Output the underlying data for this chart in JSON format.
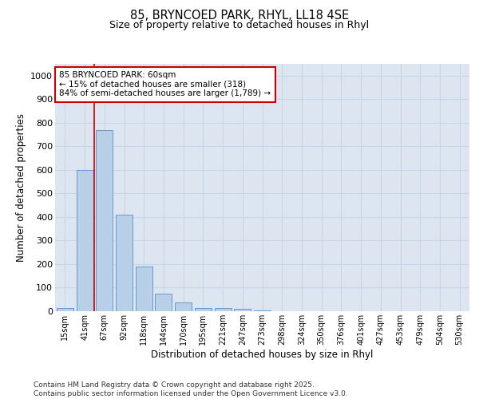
{
  "title_line1": "85, BRYNCOED PARK, RHYL, LL18 4SE",
  "title_line2": "Size of property relative to detached houses in Rhyl",
  "xlabel": "Distribution of detached houses by size in Rhyl",
  "ylabel": "Number of detached properties",
  "bar_labels": [
    "15sqm",
    "41sqm",
    "67sqm",
    "92sqm",
    "118sqm",
    "144sqm",
    "170sqm",
    "195sqm",
    "221sqm",
    "247sqm",
    "273sqm",
    "298sqm",
    "324sqm",
    "350sqm",
    "376sqm",
    "401sqm",
    "427sqm",
    "453sqm",
    "479sqm",
    "504sqm",
    "530sqm"
  ],
  "bar_values": [
    13,
    600,
    769,
    410,
    190,
    75,
    38,
    15,
    13,
    10,
    5,
    0,
    0,
    0,
    0,
    0,
    0,
    0,
    0,
    0,
    0
  ],
  "bar_color": "#b8cfe8",
  "bar_edge_color": "#6699cc",
  "vline_x": 1.5,
  "vline_color": "#cc0000",
  "annotation_text": "85 BRYNCOED PARK: 60sqm\n← 15% of detached houses are smaller (318)\n84% of semi-detached houses are larger (1,789) →",
  "annotation_box_color": "#cc0000",
  "ylim": [
    0,
    1050
  ],
  "yticks": [
    0,
    100,
    200,
    300,
    400,
    500,
    600,
    700,
    800,
    900,
    1000
  ],
  "grid_color": "#c8d4e8",
  "bg_color": "#dde6f0",
  "footer_line1": "Contains HM Land Registry data © Crown copyright and database right 2025.",
  "footer_line2": "Contains public sector information licensed under the Open Government Licence v3.0."
}
